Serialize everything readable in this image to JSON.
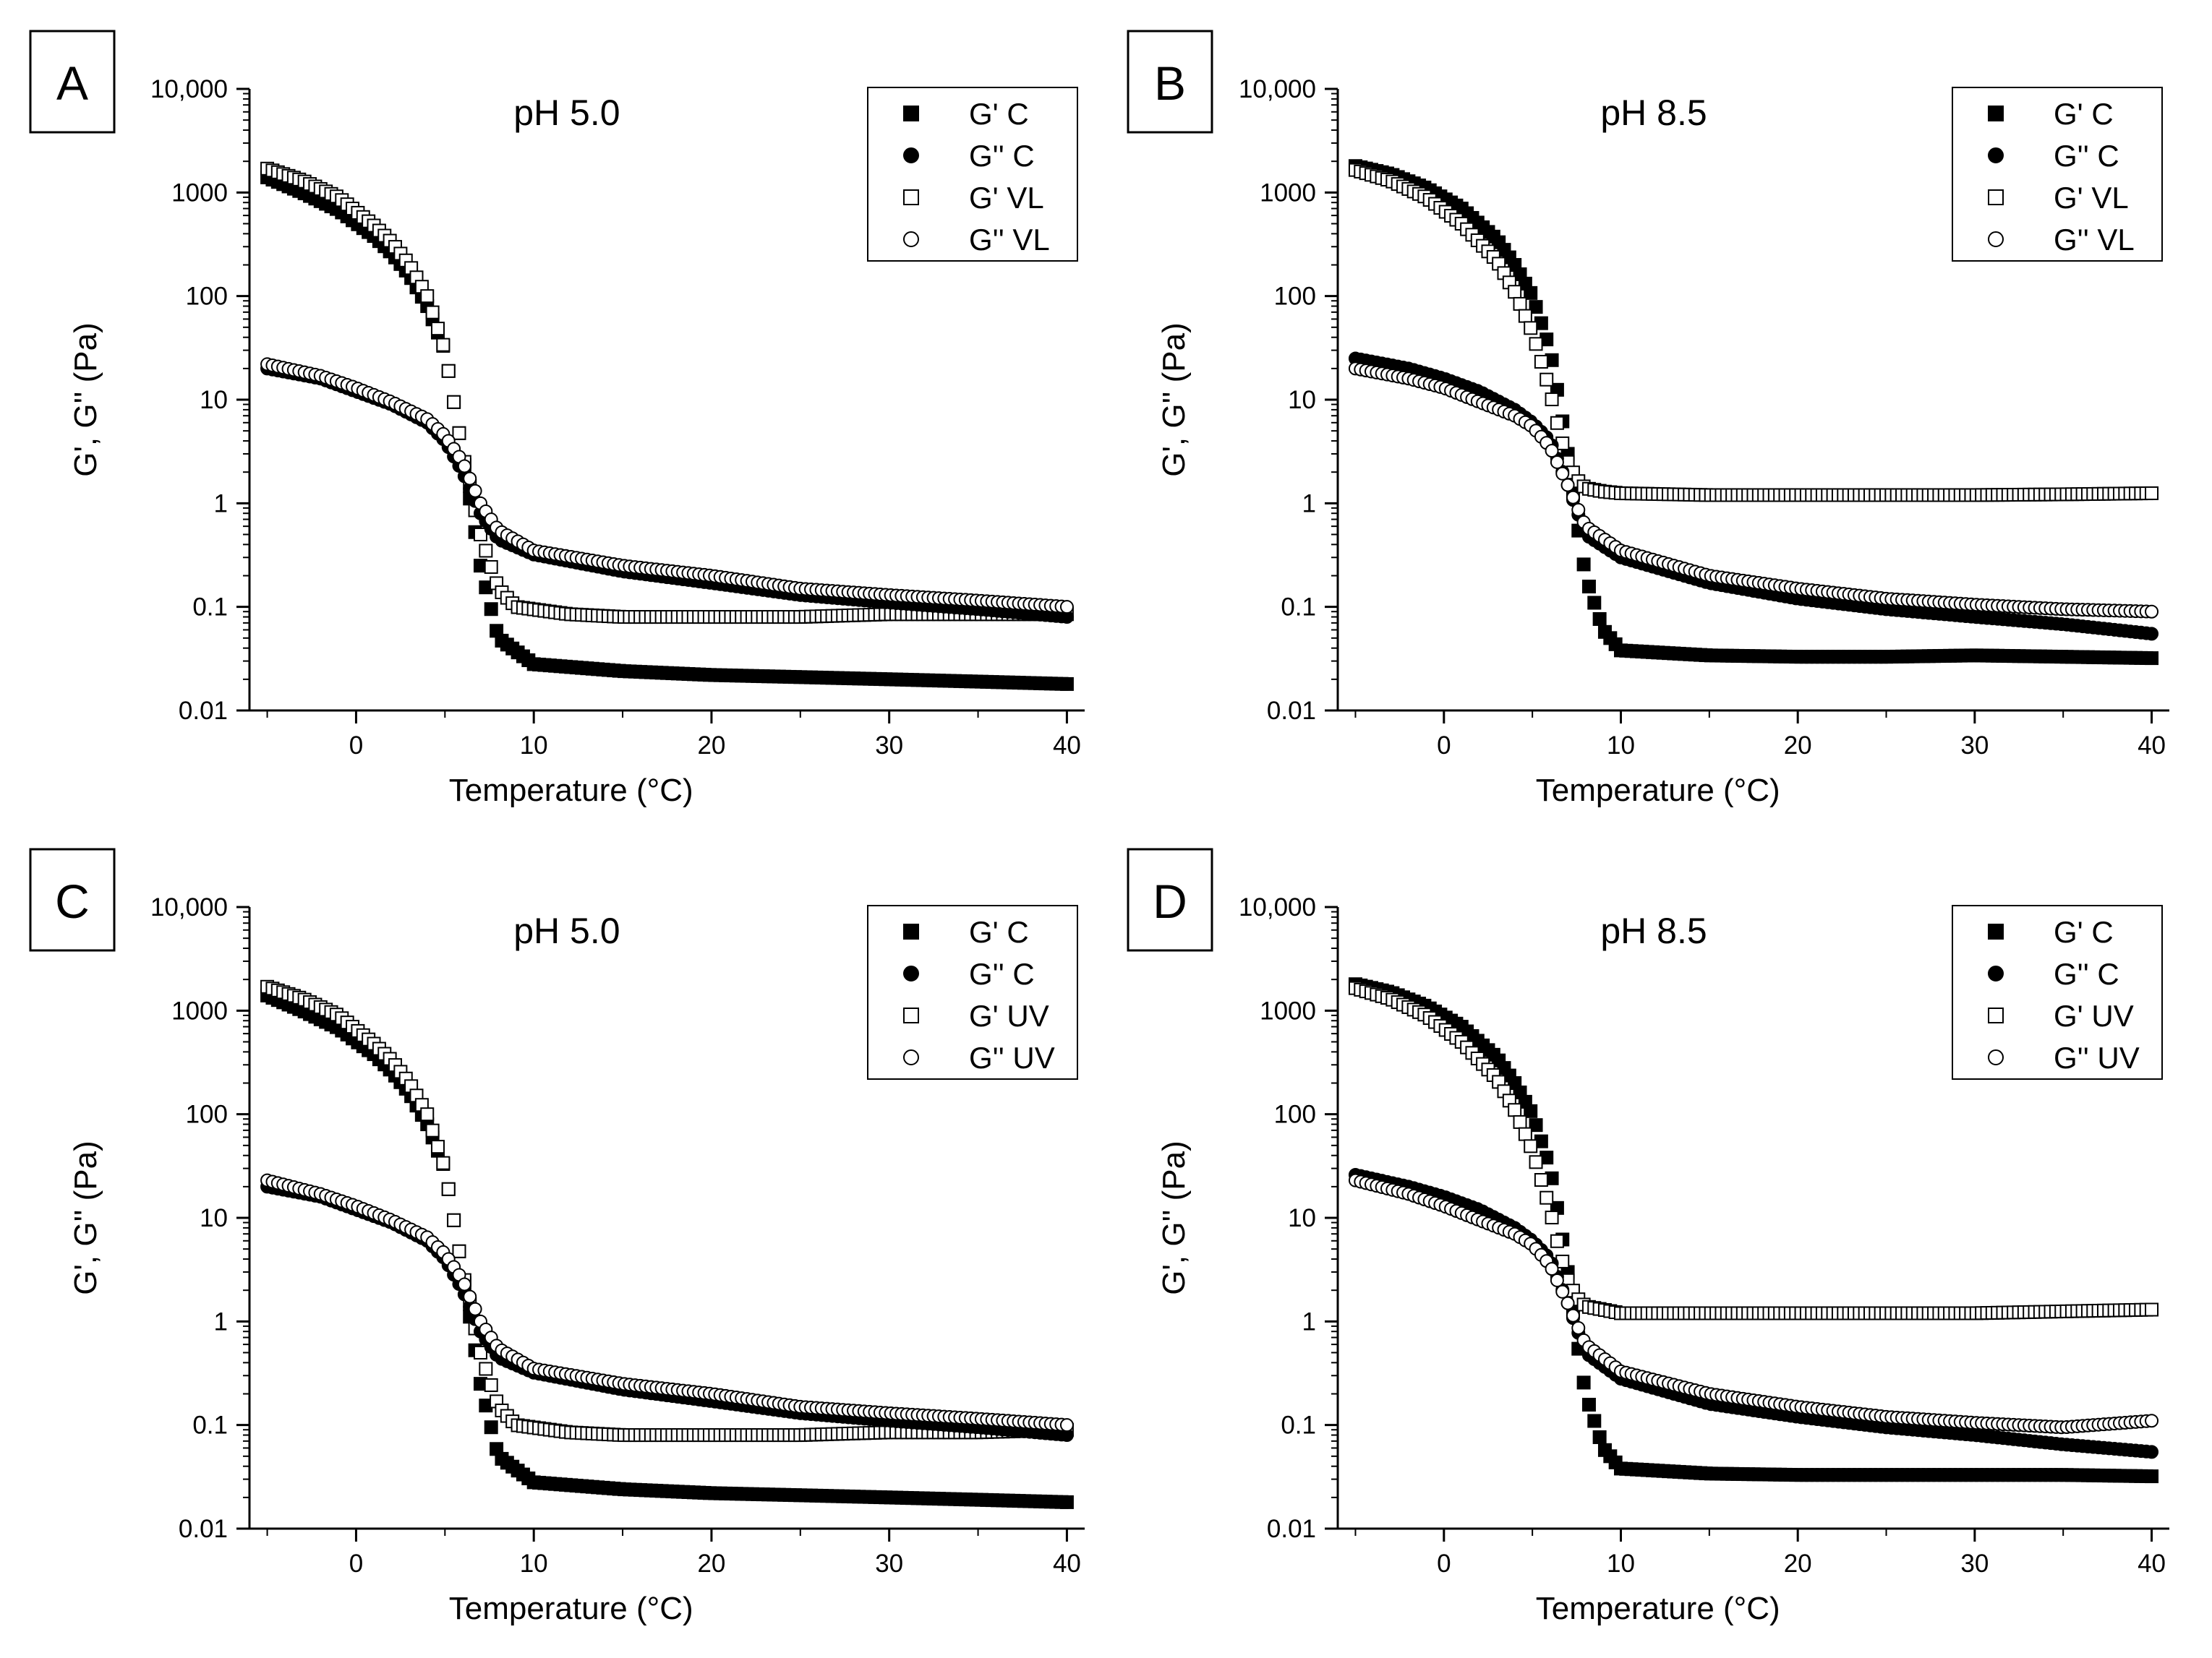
{
  "chart_data": [
    {
      "panel_label": "A",
      "type": "scatter",
      "title": "pH 5.0",
      "xlabel": "Temperature (°C)",
      "ylabel": "G', G'' (Pa)",
      "xlim": [
        -6,
        41
      ],
      "ylim": [
        0.01,
        10000
      ],
      "yscale": "log",
      "xticks": [
        "0",
        "10",
        "20",
        "30",
        "40"
      ],
      "yticks": [
        "0.01",
        "0.1",
        "1",
        "10",
        "100",
        "1000",
        "10,000"
      ],
      "legend": {
        "position": "top-right",
        "entries": [
          "G' C",
          "G'' C",
          "G' VL",
          "G'' VL"
        ]
      },
      "series": [
        {
          "name": "G' C",
          "marker": "filled-square",
          "x": [
            -5,
            -3,
            -1,
            1,
            2,
            3,
            4,
            5,
            6,
            7,
            8,
            10,
            15,
            20,
            25,
            30,
            35,
            40
          ],
          "y": [
            1400,
            1000,
            680,
            380,
            260,
            160,
            80,
            30,
            3,
            0.25,
            0.05,
            0.028,
            0.024,
            0.022,
            0.021,
            0.02,
            0.019,
            0.018
          ]
        },
        {
          "name": "G'' C",
          "marker": "filled-circle",
          "x": [
            -5,
            -2,
            0,
            2,
            4,
            5,
            6,
            7,
            8,
            10,
            15,
            20,
            25,
            30,
            35,
            40
          ],
          "y": [
            20,
            16,
            12,
            9,
            6,
            4,
            2,
            0.8,
            0.45,
            0.32,
            0.22,
            0.17,
            0.13,
            0.11,
            0.095,
            0.08
          ]
        },
        {
          "name": "G' VL",
          "marker": "open-square",
          "x": [
            -5,
            -3,
            -1,
            1,
            2,
            3,
            4,
            5,
            6,
            7,
            8,
            9,
            12,
            15,
            20,
            25,
            30,
            35,
            40
          ],
          "y": [
            1700,
            1300,
            900,
            480,
            330,
            200,
            100,
            30,
            3,
            0.5,
            0.15,
            0.1,
            0.085,
            0.08,
            0.08,
            0.08,
            0.085,
            0.085,
            0.085
          ]
        },
        {
          "name": "G'' VL",
          "marker": "open-circle",
          "x": [
            -5,
            -2,
            0,
            2,
            4,
            5,
            6,
            7,
            8,
            10,
            15,
            20,
            25,
            30,
            35,
            40
          ],
          "y": [
            22,
            17,
            13,
            9.5,
            6.5,
            4.5,
            2.5,
            1,
            0.55,
            0.35,
            0.25,
            0.2,
            0.15,
            0.13,
            0.115,
            0.1
          ]
        }
      ]
    },
    {
      "panel_label": "B",
      "type": "scatter",
      "title": "pH 8.5",
      "xlabel": "Temperature (°C)",
      "ylabel": "G', G'' (Pa)",
      "xlim": [
        -6,
        41
      ],
      "ylim": [
        0.01,
        10000
      ],
      "yscale": "log",
      "xticks": [
        "0",
        "10",
        "20",
        "30",
        "40"
      ],
      "yticks": [
        "0.01",
        "0.1",
        "1",
        "10",
        "100",
        "1000",
        "10,000"
      ],
      "legend": {
        "position": "top-right",
        "entries": [
          "G' C",
          "G'' C",
          "G' VL",
          "G'' VL"
        ]
      },
      "series": [
        {
          "name": "G' C",
          "marker": "filled-square",
          "x": [
            -5,
            -3,
            -1,
            1,
            3,
            4,
            5,
            6,
            6.5,
            7,
            7.5,
            8,
            9,
            10,
            15,
            20,
            25,
            30,
            35,
            40
          ],
          "y": [
            1800,
            1500,
            1100,
            700,
            350,
            200,
            100,
            30,
            10,
            3,
            0.7,
            0.2,
            0.06,
            0.038,
            0.034,
            0.033,
            0.033,
            0.034,
            0.033,
            0.032
          ]
        },
        {
          "name": "G'' C",
          "marker": "filled-circle",
          "x": [
            -5,
            -2,
            0,
            2,
            4,
            5,
            6,
            7,
            8,
            10,
            15,
            20,
            25,
            30,
            35,
            40
          ],
          "y": [
            25,
            20,
            16,
            12,
            8,
            6,
            4,
            1.5,
            0.5,
            0.3,
            0.17,
            0.12,
            0.095,
            0.08,
            0.068,
            0.055
          ]
        },
        {
          "name": "G' VL",
          "marker": "open-square",
          "x": [
            -5,
            -3,
            -1,
            1,
            3,
            4,
            5,
            6,
            6.5,
            7,
            7.5,
            8,
            9,
            10,
            15,
            20,
            25,
            30,
            35,
            40
          ],
          "y": [
            1650,
            1300,
            900,
            500,
            220,
            110,
            45,
            12,
            5,
            2.5,
            1.7,
            1.4,
            1.3,
            1.25,
            1.2,
            1.2,
            1.2,
            1.2,
            1.22,
            1.25
          ]
        },
        {
          "name": "G'' VL",
          "marker": "open-circle",
          "x": [
            -5,
            -2,
            0,
            2,
            4,
            5,
            6,
            7,
            8,
            10,
            15,
            20,
            25,
            30,
            35,
            40
          ],
          "y": [
            20,
            16,
            13,
            9.5,
            7,
            5.5,
            3.5,
            1.5,
            0.6,
            0.35,
            0.2,
            0.15,
            0.12,
            0.105,
            0.095,
            0.09
          ]
        }
      ]
    },
    {
      "panel_label": "C",
      "type": "scatter",
      "title": "pH 5.0",
      "xlabel": "Temperature (°C)",
      "ylabel": "G', G'' (Pa)",
      "xlim": [
        -6,
        41
      ],
      "ylim": [
        0.01,
        10000
      ],
      "yscale": "log",
      "xticks": [
        "0",
        "10",
        "20",
        "30",
        "40"
      ],
      "yticks": [
        "0.01",
        "0.1",
        "1",
        "10",
        "100",
        "1000",
        "10,000"
      ],
      "legend": {
        "position": "top-right",
        "entries": [
          "G' C",
          "G'' C",
          "G' UV",
          "G'' UV"
        ]
      },
      "series": [
        {
          "name": "G' C",
          "marker": "filled-square",
          "x": [
            -5,
            -3,
            -1,
            1,
            2,
            3,
            4,
            5,
            6,
            7,
            8,
            10,
            15,
            20,
            25,
            30,
            35,
            40
          ],
          "y": [
            1400,
            1000,
            680,
            380,
            260,
            160,
            80,
            30,
            3,
            0.25,
            0.05,
            0.028,
            0.024,
            0.022,
            0.021,
            0.02,
            0.019,
            0.018
          ]
        },
        {
          "name": "G'' C",
          "marker": "filled-circle",
          "x": [
            -5,
            -2,
            0,
            2,
            4,
            5,
            6,
            7,
            8,
            10,
            15,
            20,
            25,
            30,
            35,
            40
          ],
          "y": [
            20,
            16,
            12,
            9,
            6,
            4,
            2,
            0.8,
            0.45,
            0.32,
            0.22,
            0.17,
            0.13,
            0.11,
            0.095,
            0.08
          ]
        },
        {
          "name": "G' UV",
          "marker": "open-square",
          "x": [
            -5,
            -3,
            -1,
            1,
            2,
            3,
            4,
            5,
            6,
            7,
            8,
            9,
            12,
            15,
            20,
            25,
            30,
            35,
            40
          ],
          "y": [
            1700,
            1300,
            900,
            480,
            330,
            200,
            100,
            30,
            3,
            0.5,
            0.15,
            0.1,
            0.085,
            0.08,
            0.08,
            0.08,
            0.085,
            0.085,
            0.09
          ]
        },
        {
          "name": "G'' UV",
          "marker": "open-circle",
          "x": [
            -5,
            -2,
            0,
            2,
            4,
            5,
            6,
            7,
            8,
            10,
            15,
            20,
            25,
            30,
            35,
            40
          ],
          "y": [
            23,
            17,
            13,
            9.5,
            6.5,
            4.5,
            2.5,
            1,
            0.55,
            0.35,
            0.25,
            0.2,
            0.15,
            0.13,
            0.115,
            0.1
          ]
        }
      ]
    },
    {
      "panel_label": "D",
      "type": "scatter",
      "title": "pH 8.5",
      "xlabel": "Temperature (°C)",
      "ylabel": "G', G'' (Pa)",
      "xlim": [
        -6,
        41
      ],
      "ylim": [
        0.01,
        10000
      ],
      "yscale": "log",
      "xticks": [
        "0",
        "10",
        "20",
        "30",
        "40"
      ],
      "yticks": [
        "0.01",
        "0.1",
        "1",
        "10",
        "100",
        "1000",
        "10,000"
      ],
      "legend": {
        "position": "top-right",
        "entries": [
          "G' C",
          "G'' C",
          "G' UV",
          "G'' UV"
        ]
      },
      "series": [
        {
          "name": "G' C",
          "marker": "filled-square",
          "x": [
            -5,
            -3,
            -1,
            1,
            3,
            4,
            5,
            6,
            6.5,
            7,
            7.5,
            8,
            9,
            10,
            15,
            20,
            25,
            30,
            35,
            40
          ],
          "y": [
            1800,
            1500,
            1100,
            700,
            350,
            200,
            100,
            30,
            10,
            3,
            0.7,
            0.2,
            0.06,
            0.038,
            0.034,
            0.033,
            0.033,
            0.033,
            0.033,
            0.032
          ]
        },
        {
          "name": "G'' C",
          "marker": "filled-circle",
          "x": [
            -5,
            -2,
            0,
            2,
            4,
            5,
            6,
            7,
            8,
            10,
            15,
            20,
            25,
            30,
            35,
            40
          ],
          "y": [
            26,
            20,
            16,
            12,
            8,
            6,
            4,
            1.5,
            0.5,
            0.28,
            0.16,
            0.12,
            0.095,
            0.08,
            0.065,
            0.055
          ]
        },
        {
          "name": "G' UV",
          "marker": "open-square",
          "x": [
            -5,
            -3,
            -1,
            1,
            3,
            4,
            5,
            6,
            6.5,
            7,
            7.5,
            8,
            9,
            10,
            15,
            20,
            25,
            30,
            35,
            40
          ],
          "y": [
            1650,
            1300,
            900,
            500,
            220,
            110,
            45,
            12,
            5,
            2.5,
            1.7,
            1.4,
            1.3,
            1.2,
            1.2,
            1.2,
            1.2,
            1.2,
            1.25,
            1.3
          ]
        },
        {
          "name": "G'' UV",
          "marker": "open-circle",
          "x": [
            -5,
            -2,
            0,
            2,
            4,
            5,
            6,
            7,
            8,
            10,
            15,
            20,
            25,
            30,
            35,
            40
          ],
          "y": [
            23,
            17,
            13,
            9.5,
            7,
            5.5,
            3.5,
            1.5,
            0.6,
            0.33,
            0.2,
            0.15,
            0.12,
            0.105,
            0.095,
            0.11
          ]
        }
      ]
    }
  ]
}
